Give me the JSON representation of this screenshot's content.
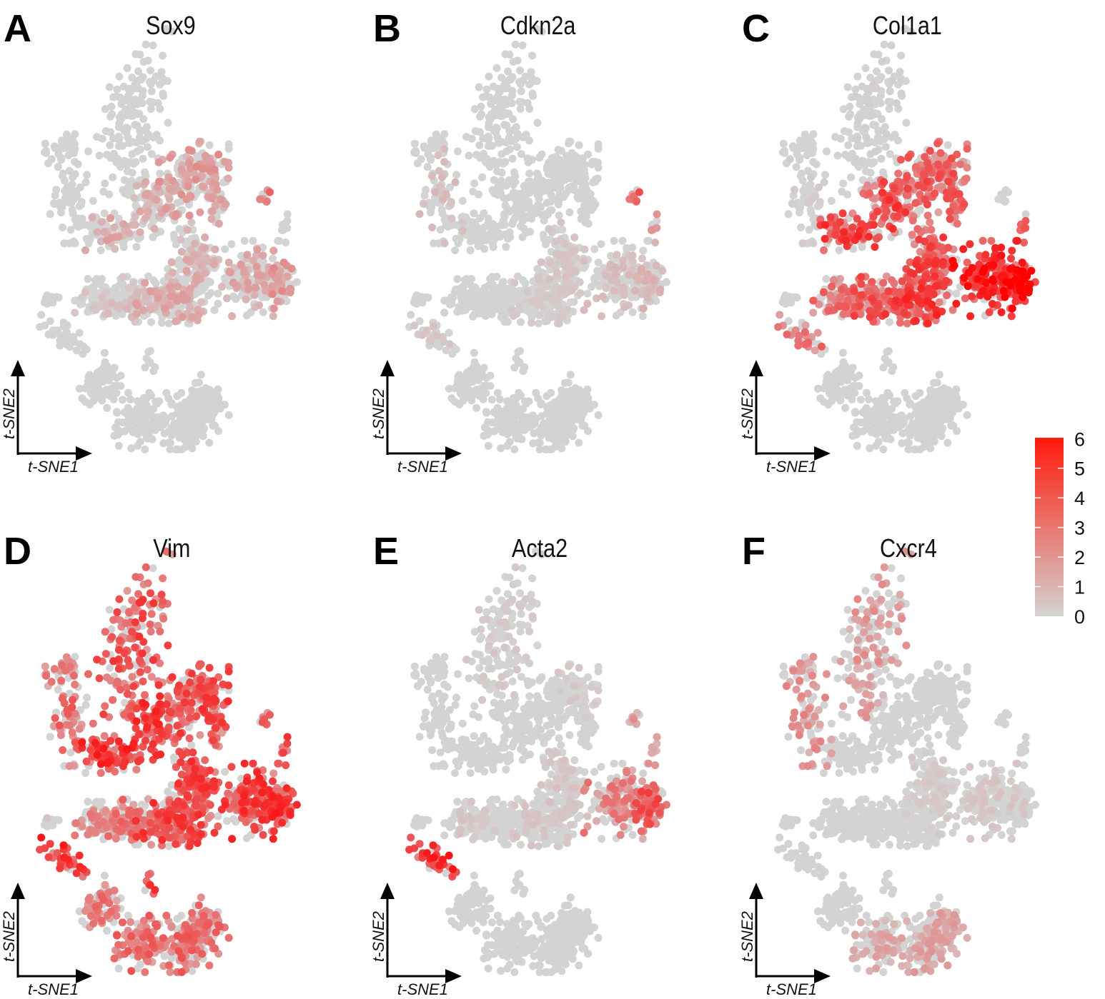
{
  "chart_data": {
    "type": "scatter",
    "embedding": "t-SNE",
    "xlabel": "t-SNE1",
    "ylabel": "t-SNE2",
    "xlim": [
      -40,
      40
    ],
    "ylim": [
      -45,
      45
    ],
    "colorscale": {
      "low": "#d3d3d3",
      "high": "#ff0000",
      "range": [
        0,
        6
      ],
      "ticks": [
        "0",
        "1",
        "2",
        "3",
        "4",
        "5",
        "6"
      ]
    },
    "clusters": [
      {
        "id": "top",
        "x": -10.4,
        "y": 33.3,
        "sx": 4.5,
        "sy": 10,
        "rot": -0.35,
        "n": 150
      },
      {
        "id": "left-small",
        "x": -33.4,
        "y": 26.3,
        "sx": 3.2,
        "sy": 1.4,
        "rot": 0.3,
        "n": 25
      },
      {
        "id": "left",
        "x": -30.1,
        "y": 14.2,
        "sx": 3,
        "sy": 5,
        "rot": 0,
        "n": 70
      },
      {
        "id": "tiny-a",
        "x": -12.6,
        "y": 16.7,
        "sx": 0.8,
        "sy": 1.6,
        "rot": 0,
        "n": 10
      },
      {
        "id": "band-1",
        "x": -17,
        "y": 5.8,
        "sx": 4.5,
        "sy": 2,
        "rot": 0,
        "n": 80
      },
      {
        "id": "band-2",
        "x": -6,
        "y": 11.7,
        "sx": 3.2,
        "sy": 3,
        "rot": 0.5,
        "n": 80
      },
      {
        "id": "band-3",
        "x": 2.8,
        "y": 16.7,
        "sx": 3.6,
        "sy": 3.5,
        "rot": 0.5,
        "n": 90
      },
      {
        "id": "band-4",
        "x": 11.5,
        "y": 20.8,
        "sx": 3,
        "sy": 2.8,
        "rot": 0,
        "n": 70
      },
      {
        "id": "band-5",
        "x": 13.7,
        "y": 13.3,
        "sx": 2,
        "sy": 2.5,
        "rot": 0,
        "n": 45
      },
      {
        "id": "center",
        "x": 7.1,
        "y": -1.7,
        "sx": 3.5,
        "sy": 5,
        "rot": 0,
        "n": 150
      },
      {
        "id": "center-low",
        "x": 0.6,
        "y": -10,
        "sx": 5,
        "sy": 2.5,
        "rot": 0,
        "n": 130
      },
      {
        "id": "center-left",
        "x": -10.4,
        "y": -10,
        "sx": 4.5,
        "sy": 2.5,
        "rot": 0,
        "n": 110
      },
      {
        "id": "far-left",
        "x": -21.4,
        "y": -9.5,
        "sx": 3.5,
        "sy": 2,
        "rot": 0,
        "n": 80
      },
      {
        "id": "right",
        "x": 24.7,
        "y": -5,
        "sx": 5,
        "sy": 4,
        "rot": 0,
        "n": 140
      },
      {
        "id": "right-tip",
        "x": 33.5,
        "y": -6.5,
        "sx": 2.5,
        "sy": 2.5,
        "rot": 0,
        "n": 70
      },
      {
        "id": "island-r1",
        "x": 29,
        "y": 14.2,
        "sx": 1.3,
        "sy": 0.8,
        "rot": 0,
        "n": 10
      },
      {
        "id": "island-r2",
        "x": 35.2,
        "y": 6.7,
        "sx": 0.6,
        "sy": 1.5,
        "rot": 0,
        "n": 10
      },
      {
        "id": "island-l",
        "x": -36.7,
        "y": -9.7,
        "sx": 1.2,
        "sy": 0.6,
        "rot": 0,
        "n": 10
      },
      {
        "id": "strip",
        "x": -32.3,
        "y": -18.3,
        "sx": 4,
        "sy": 1.3,
        "rot": -0.5,
        "n": 35
      },
      {
        "id": "tiny-b",
        "x": -6,
        "y": -25,
        "sx": 0.8,
        "sy": 1.5,
        "rot": 0,
        "n": 10
      },
      {
        "id": "bottom-1",
        "x": -21.4,
        "y": -30,
        "sx": 3,
        "sy": 2.5,
        "rot": 0.6,
        "n": 70
      },
      {
        "id": "bottom-2",
        "x": -8.2,
        "y": -38.3,
        "sx": 4,
        "sy": 3,
        "rot": 0,
        "n": 110
      },
      {
        "id": "bottom-3",
        "x": 5,
        "y": -38.3,
        "sx": 4,
        "sy": 3,
        "rot": 0,
        "n": 110
      },
      {
        "id": "bottom-4",
        "x": 11.5,
        "y": -34,
        "sx": 3,
        "sy": 3,
        "rot": 0,
        "n": 80
      }
    ],
    "panels": [
      {
        "label": "A",
        "gene": "Sox9",
        "expr": {
          "band-1": 1.2,
          "band-2": 1.0,
          "band-3": 1.5,
          "band-4": 1.6,
          "band-5": 1.2,
          "center": 1.0,
          "center-low": 1.2,
          "center-left": 0.6,
          "right": 1.2,
          "right-tip": 1.6,
          "island-r1": 2.5,
          "far-left": 0.4
        }
      },
      {
        "label": "B",
        "gene": "Cdkn2a",
        "expr": {
          "left": 0.6,
          "center": 0.4,
          "right": 0.6,
          "right-tip": 0.8,
          "island-r1": 3,
          "island-r2": 1.5,
          "center-low": 0.3,
          "strip": 0.4
        }
      },
      {
        "label": "C",
        "gene": "Col1a1",
        "expr": {
          "band-1": 3.8,
          "band-2": 3.6,
          "band-3": 3.2,
          "band-4": 3.0,
          "band-5": 3.0,
          "center": 3.5,
          "center-low": 3.8,
          "center-left": 3.2,
          "far-left": 2.6,
          "right": 4.5,
          "right-tip": 5.2,
          "island-r2": 3,
          "strip": 2.5,
          "tiny-a": 2.5,
          "top": 0.1,
          "left": 0.2
        }
      },
      {
        "label": "D",
        "gene": "Vim",
        "expr": {
          "top": 3.4,
          "left-small": 2.2,
          "left": 2.8,
          "tiny-a": 3,
          "band-1": 4,
          "band-2": 3.8,
          "band-3": 3.6,
          "band-4": 3.6,
          "band-5": 3.4,
          "center": 3.6,
          "center-low": 3.6,
          "center-left": 2.6,
          "far-left": 2.0,
          "right": 3.8,
          "right-tip": 4.0,
          "island-r1": 2.8,
          "island-r2": 4,
          "island-l": 0.5,
          "strip": 4,
          "tiny-b": 4,
          "bottom-1": 2.4,
          "bottom-2": 2.8,
          "bottom-3": 2.8,
          "bottom-4": 2.6
        }
      },
      {
        "label": "E",
        "gene": "Acta2",
        "expr": {
          "top": 0.3,
          "right": 2.2,
          "right-tip": 3.2,
          "strip": 4.5,
          "center": 0.4,
          "center-low": 0.4,
          "band-4": 0.3,
          "island-r1": 1.5,
          "island-r2": 1.5,
          "far-left": 0.4
        }
      },
      {
        "label": "F",
        "gene": "Cxcr4",
        "expr": {
          "top": 1.6,
          "left-small": 1.8,
          "left": 1.8,
          "tiny-a": 1.5,
          "bottom-2": 1.2,
          "bottom-3": 1.4,
          "bottom-4": 1.3,
          "center": 0.3,
          "right": 0.4
        }
      }
    ]
  }
}
